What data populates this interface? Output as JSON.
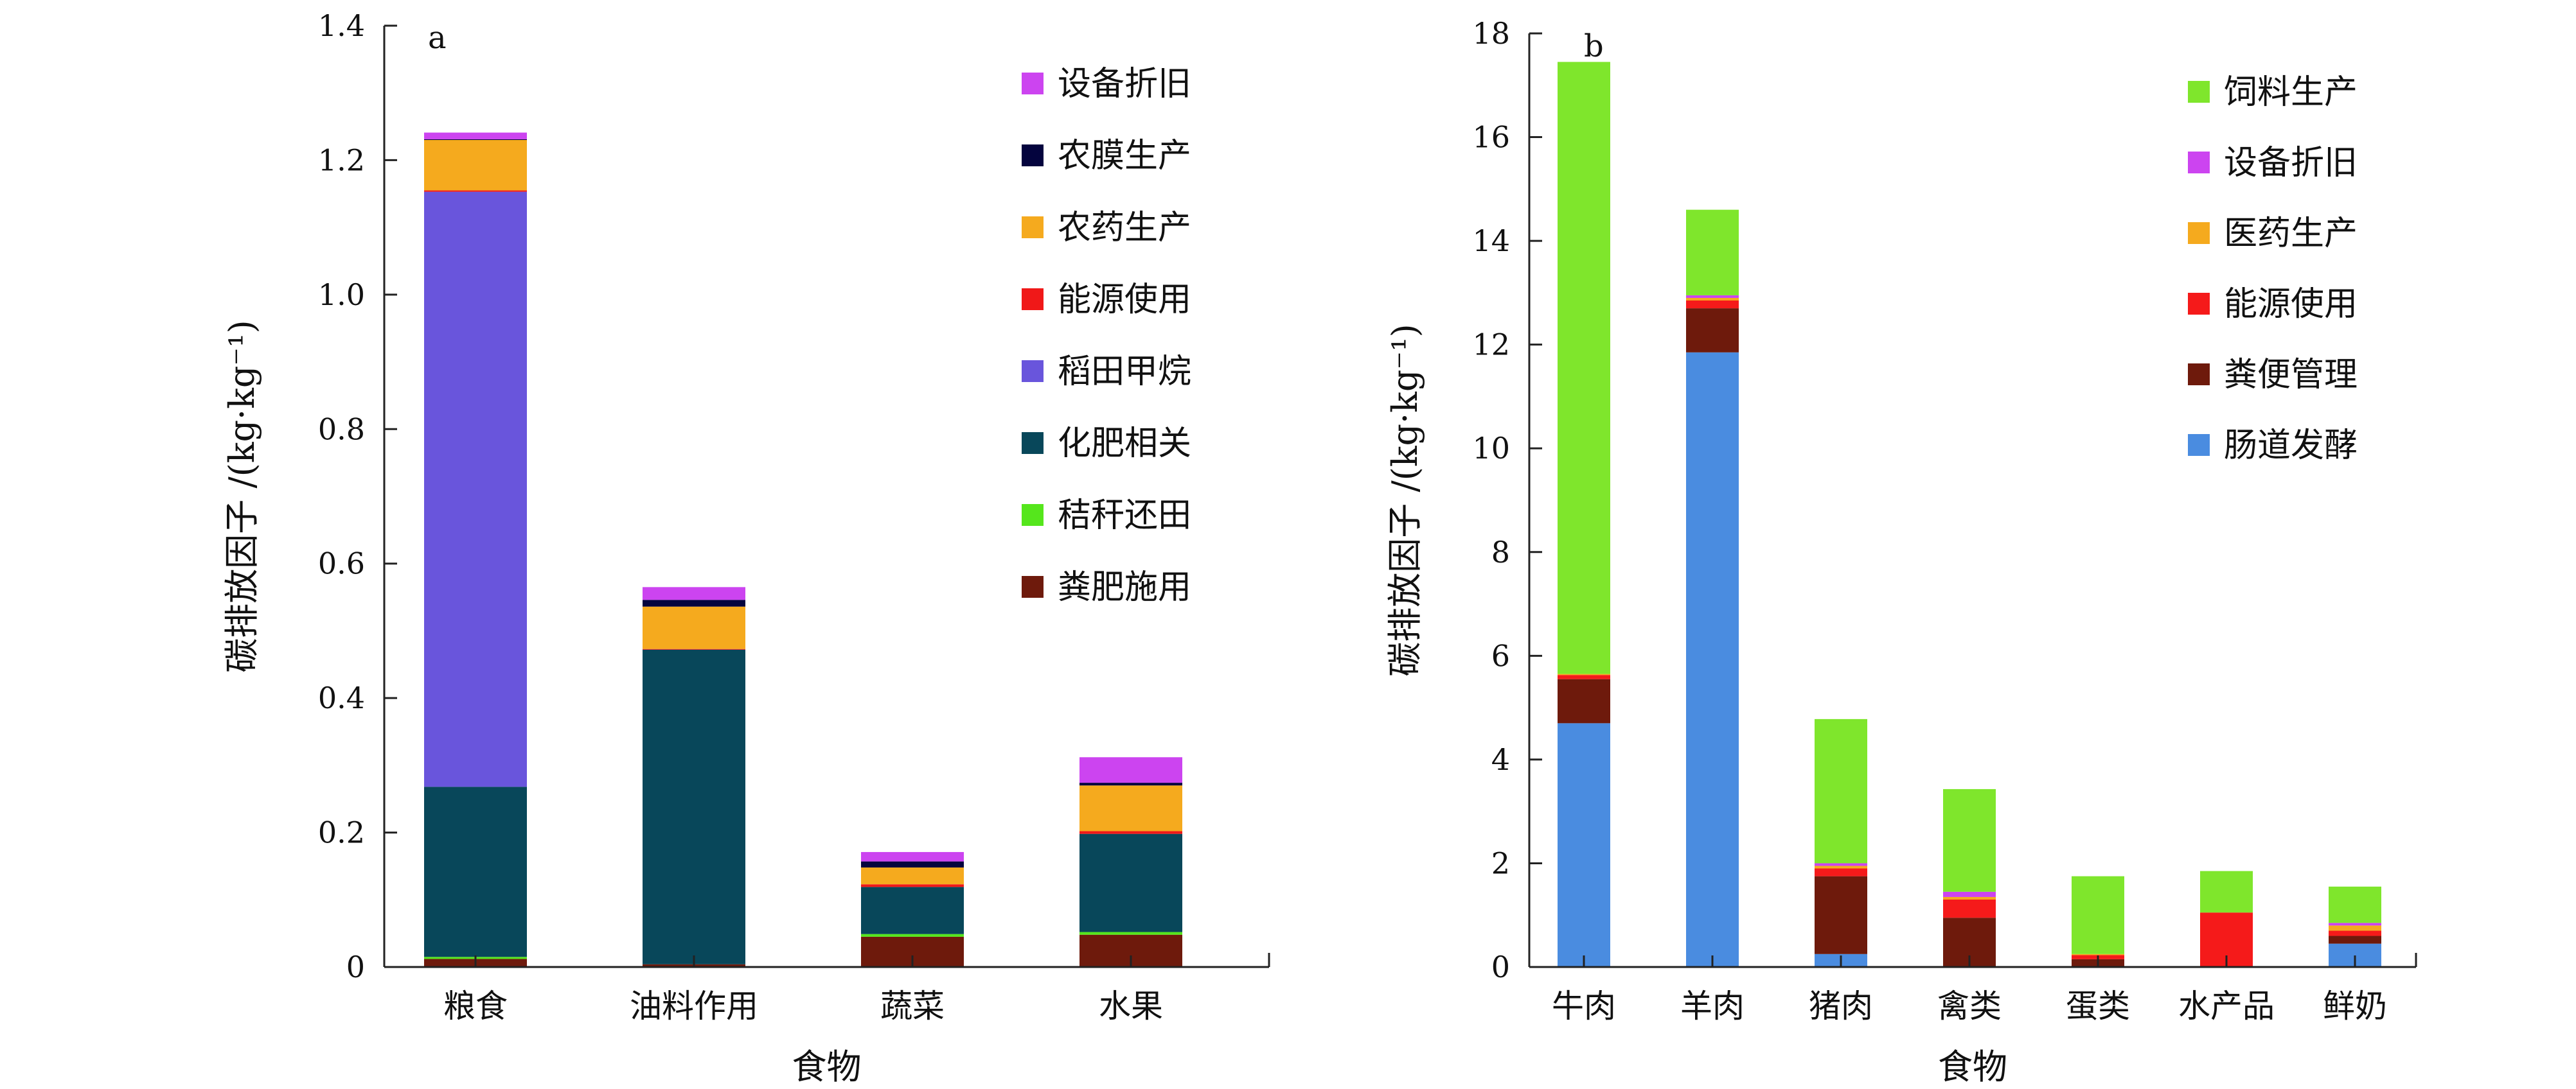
{
  "chart_data": [
    {
      "type": "stacked-bar",
      "panel_label": "a",
      "xlabel": "食物",
      "ylabel": "碳排放因子 /(kg·kg⁻¹)",
      "ylim": [
        0,
        1.4
      ],
      "yticks": [
        0,
        0.2,
        0.4,
        0.6,
        0.8,
        1.0,
        1.2,
        1.4
      ],
      "ytick_labels": [
        "0",
        "0.2",
        "0.4",
        "0.6",
        "0.8",
        "1.0",
        "1.2",
        "1.4"
      ],
      "categories": [
        "粮食",
        "油料作用",
        "蔬菜",
        "水果"
      ],
      "legend_position": "top-right",
      "series": [
        {
          "name": "粪肥施用",
          "color": "#6e1a0c",
          "values": [
            0.012,
            0.004,
            0.045,
            0.048
          ]
        },
        {
          "name": "秸秆还田",
          "color": "#55e61c",
          "values": [
            0.003,
            0.0,
            0.004,
            0.004
          ]
        },
        {
          "name": "化肥相关",
          "color": "#08475a",
          "values": [
            0.253,
            0.468,
            0.07,
            0.146
          ]
        },
        {
          "name": "稻田甲烷",
          "color": "#6955dc",
          "values": [
            0.885,
            0.0,
            0.0,
            0.0
          ]
        },
        {
          "name": "能源使用",
          "color": "#f01818",
          "values": [
            0.002,
            0.001,
            0.004,
            0.004
          ]
        },
        {
          "name": "农药生产",
          "color": "#f5aa1e",
          "values": [
            0.075,
            0.063,
            0.025,
            0.068
          ]
        },
        {
          "name": "农膜生产",
          "color": "#04043e",
          "values": [
            0.001,
            0.01,
            0.009,
            0.004
          ]
        },
        {
          "name": "设备折旧",
          "color": "#cc44f0",
          "values": [
            0.01,
            0.019,
            0.014,
            0.038
          ]
        }
      ]
    },
    {
      "type": "stacked-bar",
      "panel_label": "b",
      "xlabel": "食物",
      "ylabel": "碳排放因子 /(kg·kg⁻¹)",
      "ylim": [
        0,
        18
      ],
      "yticks": [
        0,
        2,
        4,
        6,
        8,
        10,
        12,
        14,
        16,
        18
      ],
      "ytick_labels": [
        "0",
        "2",
        "4",
        "6",
        "8",
        "10",
        "12",
        "14",
        "16",
        "18"
      ],
      "categories": [
        "牛肉",
        "羊肉",
        "猪肉",
        "禽类",
        "蛋类",
        "水产品",
        "鲜奶"
      ],
      "legend_position": "top-right",
      "series": [
        {
          "name": "肠道发酵",
          "color": "#4a8ce0",
          "values": [
            4.7,
            11.85,
            0.25,
            0.0,
            0.0,
            0.0,
            0.45
          ]
        },
        {
          "name": "粪便管理",
          "color": "#6e1a0c",
          "values": [
            0.85,
            0.85,
            1.5,
            0.95,
            0.15,
            0.0,
            0.15
          ]
        },
        {
          "name": "能源使用",
          "color": "#f51a1a",
          "values": [
            0.08,
            0.15,
            0.15,
            0.35,
            0.08,
            1.05,
            0.1
          ]
        },
        {
          "name": "医药生产",
          "color": "#f5aa1e",
          "values": [
            0.02,
            0.05,
            0.05,
            0.05,
            0.02,
            0.0,
            0.1
          ]
        },
        {
          "name": "设备折旧",
          "color": "#cc44f0",
          "values": [
            0.0,
            0.05,
            0.05,
            0.1,
            0.0,
            0.0,
            0.05
          ]
        },
        {
          "name": "饲料生产",
          "color": "#7fe62c",
          "values": [
            11.8,
            1.65,
            2.78,
            1.98,
            1.5,
            0.8,
            0.7
          ]
        }
      ]
    }
  ]
}
